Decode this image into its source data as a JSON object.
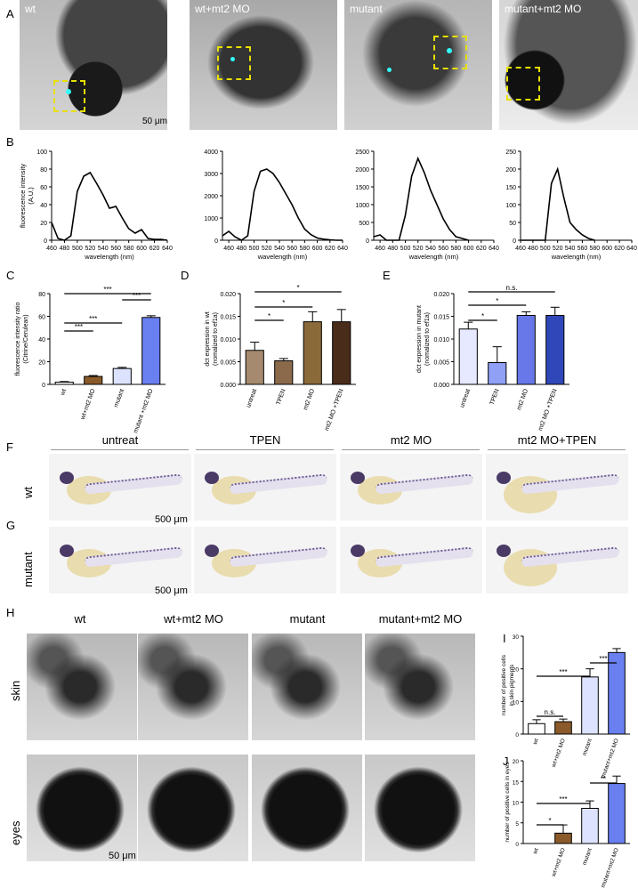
{
  "panel_letters": {
    "A": "A",
    "B": "B",
    "C": "C",
    "D": "D",
    "E": "E",
    "F": "F",
    "G": "G",
    "H": "H",
    "I": "I",
    "J": "J"
  },
  "panelA": {
    "labels": [
      "wt",
      "wt+mt2 MO",
      "mutant",
      "mutant+mt2 MO"
    ],
    "scalebar": "50 μm"
  },
  "panelB": {
    "ylabel": "fluorescence intensity (A.U.)",
    "xlabel": "wavelength (nm)"
  },
  "panelF": {
    "col_heads": [
      "untreat",
      "TPEN",
      "mt2 MO",
      "mt2 MO+TPEN"
    ],
    "row": "wt",
    "scalebar": "500 μm"
  },
  "panelG": {
    "row": "mutant",
    "scalebar": "500 μm"
  },
  "panelH": {
    "col_heads": [
      "wt",
      "wt+mt2 MO",
      "mutant",
      "mutant+mt2 MO"
    ],
    "rows": [
      "skin",
      "eyes"
    ],
    "scalebar": "50 μm"
  },
  "colors": {
    "wt": "#ffffff",
    "wtMO": "#8b5a2b",
    "mutant": "#dde3ff",
    "mutantMO": "#6a7ff0",
    "untreat": "#a58a6f",
    "tpen": "#8b6a4c",
    "mt2mo": "#8b6a3a",
    "mt2tpen": "#4a2c1b",
    "e_untreat": "#e6e9ff",
    "e_tpen": "#8fa0f5",
    "e_mt2": "#6878e8",
    "e_mt2tpen": "#2f47b8"
  },
  "chart_data": [
    {
      "id": "B1",
      "type": "line",
      "x": [
        460,
        470,
        480,
        490,
        500,
        510,
        520,
        530,
        540,
        550,
        560,
        570,
        580,
        590,
        600,
        610,
        620,
        630,
        640
      ],
      "y": [
        20,
        2,
        0,
        5,
        55,
        72,
        76,
        64,
        51,
        36,
        38,
        25,
        13,
        8,
        12,
        2,
        1,
        1,
        0
      ],
      "ylim": [
        0,
        100
      ],
      "yticks": [
        0,
        20,
        40,
        60,
        80,
        100
      ],
      "xticks": [
        460,
        480,
        500,
        520,
        540,
        560,
        580,
        600,
        620,
        640
      ],
      "ylabel": "fluorescence intensity (A.U.)",
      "xlabel": "wavelength (nm)"
    },
    {
      "id": "B2",
      "type": "line",
      "x": [
        450,
        460,
        470,
        480,
        490,
        500,
        510,
        520,
        530,
        540,
        550,
        560,
        570,
        580,
        590,
        600,
        610,
        620,
        630,
        640
      ],
      "y": [
        200,
        400,
        150,
        0,
        200,
        2200,
        3100,
        3200,
        3000,
        2600,
        2100,
        1600,
        1000,
        500,
        250,
        100,
        50,
        20,
        0,
        0
      ],
      "ylim": [
        0,
        4000
      ],
      "yticks": [
        0,
        1000,
        2000,
        3000,
        4000
      ],
      "xticks": [
        460,
        480,
        500,
        520,
        540,
        560,
        580,
        600,
        620,
        640
      ],
      "xlabel": "wavelength (nm)"
    },
    {
      "id": "B3",
      "type": "line",
      "x": [
        450,
        460,
        470,
        480,
        490,
        500,
        510,
        520,
        530,
        540,
        550,
        560,
        570,
        580,
        590,
        600
      ],
      "y": [
        100,
        150,
        0,
        0,
        0,
        700,
        1800,
        2300,
        1900,
        1400,
        1000,
        600,
        300,
        100,
        50,
        0
      ],
      "ylim": [
        0,
        2500
      ],
      "yticks": [
        0,
        500,
        1000,
        1500,
        2000,
        2500
      ],
      "xticks": [
        460,
        480,
        500,
        520,
        540,
        560,
        580,
        600,
        620,
        640
      ],
      "xlabel": "wavelength (nm)"
    },
    {
      "id": "B4",
      "type": "line",
      "x": [
        460,
        470,
        480,
        490,
        500,
        510,
        520,
        530,
        540,
        550,
        560,
        570,
        580
      ],
      "y": [
        0,
        0,
        0,
        0,
        0,
        160,
        200,
        120,
        50,
        30,
        15,
        5,
        0
      ],
      "ylim": [
        0,
        250
      ],
      "yticks": [
        0,
        50,
        100,
        150,
        200,
        250
      ],
      "xticks": [
        460,
        480,
        500,
        520,
        540,
        560,
        580,
        600,
        620,
        640
      ],
      "xlabel": "wavelength (nm)"
    },
    {
      "id": "C",
      "type": "bar",
      "categories": [
        "wt",
        "wt+mt2 MO",
        "mutant",
        "mutant +mt2 MO"
      ],
      "values": [
        2,
        7,
        14,
        59
      ],
      "errors": [
        0.5,
        0.8,
        1,
        1.5
      ],
      "ylim": [
        0,
        80
      ],
      "yticks": [
        0,
        20,
        40,
        60,
        80
      ],
      "ylabel": "fluorescence intensity ratio (Citrine/Cerulean)",
      "significance": [
        {
          "from": 0,
          "to": 1,
          "label": "***"
        },
        {
          "from": 0,
          "to": 2,
          "label": "***"
        },
        {
          "from": 2,
          "to": 3,
          "label": "***"
        },
        {
          "from": 0,
          "to": 3,
          "label": "***"
        }
      ]
    },
    {
      "id": "D",
      "type": "bar",
      "categories": [
        "untreat",
        "TPEN",
        "mt2 MO",
        "mt2 MO +TPEN"
      ],
      "values": [
        0.0075,
        0.0052,
        0.0138,
        0.0138
      ],
      "errors": [
        0.0018,
        0.0005,
        0.0022,
        0.0027
      ],
      "ylim": [
        0,
        0.02
      ],
      "yticks": [
        "0.000",
        "0.005",
        "0.010",
        "0.015",
        "0.020"
      ],
      "ylabel": "dct expression in wt (nomalized to ef1a)",
      "significance": [
        {
          "from": 0,
          "to": 1,
          "label": "*"
        },
        {
          "from": 0,
          "to": 2,
          "label": "*"
        },
        {
          "from": 0,
          "to": 3,
          "label": "*"
        }
      ]
    },
    {
      "id": "E",
      "type": "bar",
      "categories": [
        "untreat",
        "TPEN",
        "mt2 MO",
        "mt2 MO +TPEN"
      ],
      "values": [
        0.0122,
        0.0048,
        0.0152,
        0.0152
      ],
      "errors": [
        0.0015,
        0.0035,
        0.0008,
        0.0018
      ],
      "ylim": [
        0,
        0.02
      ],
      "yticks": [
        "0.000",
        "0.005",
        "0.010",
        "0.015",
        "0.020"
      ],
      "ylabel": "dct expression in mutant (nomalized to ef1a)",
      "significance": [
        {
          "from": 0,
          "to": 1,
          "label": "*"
        },
        {
          "from": 0,
          "to": 2,
          "label": "*"
        },
        {
          "from": 0,
          "to": 3,
          "label": "n.s."
        }
      ]
    },
    {
      "id": "I",
      "type": "bar",
      "categories": [
        "wt",
        "wt+mt2 MO",
        "mutant",
        "mutant+mt2 MO"
      ],
      "values": [
        3.2,
        3.8,
        17.5,
        25
      ],
      "errors": [
        1.2,
        0.8,
        2.5,
        1.2
      ],
      "ylim": [
        0,
        30
      ],
      "yticks": [
        0,
        10,
        20,
        30
      ],
      "ylabel": "number of positive cells in skin pigments",
      "significance": [
        {
          "from": 0,
          "to": 1,
          "label": "n.s."
        },
        {
          "from": 0,
          "to": 2,
          "label": "***"
        },
        {
          "from": 2,
          "to": 3,
          "label": "***"
        }
      ]
    },
    {
      "id": "J",
      "type": "bar",
      "categories": [
        "wt",
        "wt+mt2 MO",
        "mutant",
        "mutant+mt2 MO"
      ],
      "values": [
        0,
        2.5,
        8.5,
        14.5
      ],
      "errors": [
        0,
        2,
        1.8,
        1.8
      ],
      "ylim": [
        0,
        20
      ],
      "yticks": [
        0,
        5,
        10,
        15,
        20
      ],
      "ylabel": "number of positive cells in eyes",
      "significance": [
        {
          "from": 0,
          "to": 1,
          "label": "*"
        },
        {
          "from": 0,
          "to": 2,
          "label": "***"
        },
        {
          "from": 2,
          "to": 3,
          "label": "**"
        }
      ]
    }
  ]
}
